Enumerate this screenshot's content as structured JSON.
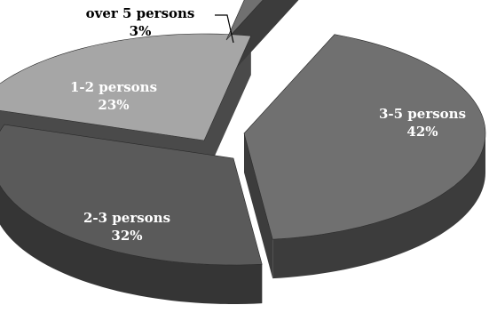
{
  "chart_data": {
    "type": "pie",
    "style": "3d-exploded",
    "slices": [
      {
        "label": "3-5 persons",
        "value": 42,
        "value_label": "42%",
        "top_color": "#707070",
        "side_color": "#3c3c3c",
        "label_color": "#ffffff"
      },
      {
        "label": "2-3 persons",
        "value": 32,
        "value_label": "32%",
        "top_color": "#5a5a5a",
        "side_color": "#353535",
        "label_color": "#ffffff"
      },
      {
        "label": "1-2 persons",
        "value": 23,
        "value_label": "23%",
        "top_color": "#a6a6a6",
        "side_color": "#4a4a4a",
        "label_color": "#ffffff"
      },
      {
        "label": "over 5 persons",
        "value": 3,
        "value_label": "3%",
        "top_color": "#707070",
        "side_color": "#3c3c3c",
        "label_color": "#000000"
      }
    ]
  }
}
